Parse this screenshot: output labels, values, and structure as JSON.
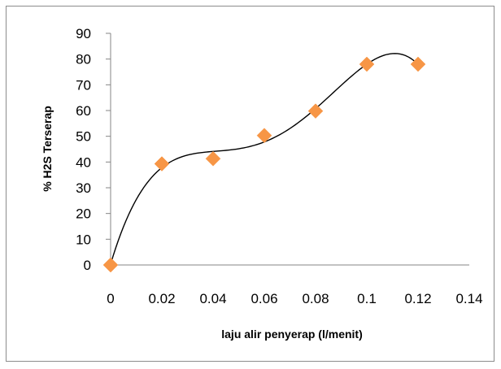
{
  "chart_data": {
    "type": "scatter",
    "title": "",
    "xlabel": "laju alir penyerap (l/menit)",
    "ylabel": "% H2S Terserap",
    "xlim": [
      0,
      0.14
    ],
    "ylim": [
      0,
      90
    ],
    "xticks": [
      "0",
      "0.02",
      "0.04",
      "0.06",
      "0.08",
      "0.1",
      "0.12",
      "0.14"
    ],
    "yticks": [
      "0",
      "10",
      "20",
      "30",
      "40",
      "50",
      "60",
      "70",
      "80",
      "90"
    ],
    "grid": false,
    "legend": "none",
    "marker": "diamond",
    "trendline": "polynomial",
    "series": [
      {
        "x": [
          0,
          0.02,
          0.04,
          0.06,
          0.08,
          0.1,
          0.12
        ],
        "y": [
          0,
          39.3,
          41.3,
          50.3,
          59.8,
          78,
          78
        ],
        "color": "#F79646"
      }
    ],
    "trend_color": "#000000"
  }
}
